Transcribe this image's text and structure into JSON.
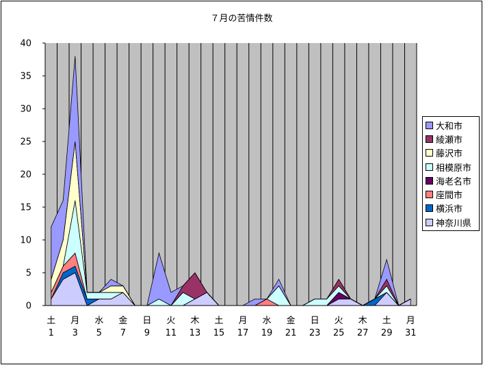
{
  "chart_data": {
    "type": "area",
    "title": "７月の苦情件数",
    "ylim": [
      0,
      40
    ],
    "yticks": [
      0,
      5,
      10,
      15,
      20,
      25,
      30,
      35,
      40
    ],
    "x": [
      1,
      2,
      3,
      4,
      5,
      6,
      7,
      8,
      9,
      10,
      11,
      12,
      13,
      14,
      15,
      16,
      17,
      18,
      19,
      20,
      21,
      22,
      23,
      24,
      25,
      26,
      27,
      28,
      29,
      30,
      31
    ],
    "x_label_days": [
      "1",
      "3",
      "5",
      "7",
      "9",
      "11",
      "13",
      "15",
      "17",
      "19",
      "21",
      "23",
      "25",
      "27",
      "29",
      "31"
    ],
    "x_label_weekdays": [
      "土",
      "月",
      "水",
      "金",
      "日",
      "火",
      "木",
      "土",
      "月",
      "水",
      "金",
      "日",
      "火",
      "木",
      "土",
      "月"
    ],
    "stacked": true,
    "grid": "vertical",
    "legend_position": "right",
    "series": [
      {
        "name": "神奈川県",
        "color": "#ccccff",
        "values": [
          1,
          4,
          5,
          0,
          1,
          1,
          2,
          0,
          0,
          0,
          0,
          0,
          1,
          2,
          0,
          0,
          0,
          0,
          0,
          0,
          0,
          0,
          0,
          0,
          1,
          1,
          0,
          0,
          2,
          0,
          1
        ]
      },
      {
        "name": "横浜市",
        "color": "#0066cc",
        "values": [
          0,
          1,
          1,
          1,
          0,
          0,
          0,
          0,
          0,
          0,
          0,
          0,
          0,
          0,
          0,
          0,
          0,
          0,
          0,
          0,
          0,
          0,
          0,
          0,
          0,
          0,
          0,
          1,
          0,
          0,
          0
        ]
      },
      {
        "name": "座間市",
        "color": "#ff8080",
        "values": [
          1,
          1,
          2,
          0,
          0,
          0,
          0,
          0,
          0,
          0,
          0,
          0,
          0,
          0,
          0,
          0,
          0,
          0,
          1,
          0,
          0,
          0,
          0,
          0,
          0,
          0,
          0,
          0,
          0,
          0,
          0
        ]
      },
      {
        "name": "海老名市",
        "color": "#660066",
        "values": [
          0,
          0,
          0,
          0,
          0,
          0,
          0,
          0,
          0,
          0,
          0,
          0,
          0,
          0,
          0,
          0,
          0,
          0,
          0,
          0,
          0,
          0,
          0,
          0,
          1,
          0,
          0,
          0,
          0,
          0,
          0
        ]
      },
      {
        "name": "相模原市",
        "color": "#ccffff",
        "values": [
          0,
          0,
          8,
          1,
          1,
          1,
          0,
          0,
          0,
          1,
          0,
          2,
          0,
          0,
          0,
          0,
          0,
          0,
          0,
          3,
          0,
          0,
          1,
          1,
          1,
          0,
          0,
          0,
          1,
          0,
          0
        ]
      },
      {
        "name": "藤沢市",
        "color": "#ffffcc",
        "values": [
          2,
          4,
          9,
          0,
          0,
          1,
          1,
          0,
          0,
          0,
          0,
          0,
          0,
          0,
          0,
          0,
          0,
          0,
          0,
          0,
          0,
          0,
          0,
          0,
          0,
          0,
          0,
          0,
          0,
          0,
          0
        ]
      },
      {
        "name": "綾瀬市",
        "color": "#993366",
        "values": [
          0,
          0,
          0,
          0,
          0,
          0,
          0,
          0,
          0,
          0,
          0,
          1,
          4,
          0,
          0,
          0,
          0,
          0,
          0,
          0,
          0,
          0,
          0,
          0,
          1,
          0,
          0,
          0,
          1,
          0,
          0
        ]
      },
      {
        "name": "大和市",
        "color": "#9999ff",
        "values": [
          8,
          6,
          13,
          0,
          0,
          1,
          0,
          0,
          0,
          7,
          2,
          0,
          0,
          0,
          0,
          0,
          0,
          1,
          0,
          1,
          0,
          0,
          0,
          0,
          0,
          0,
          0,
          0,
          3,
          0,
          0
        ]
      }
    ]
  }
}
